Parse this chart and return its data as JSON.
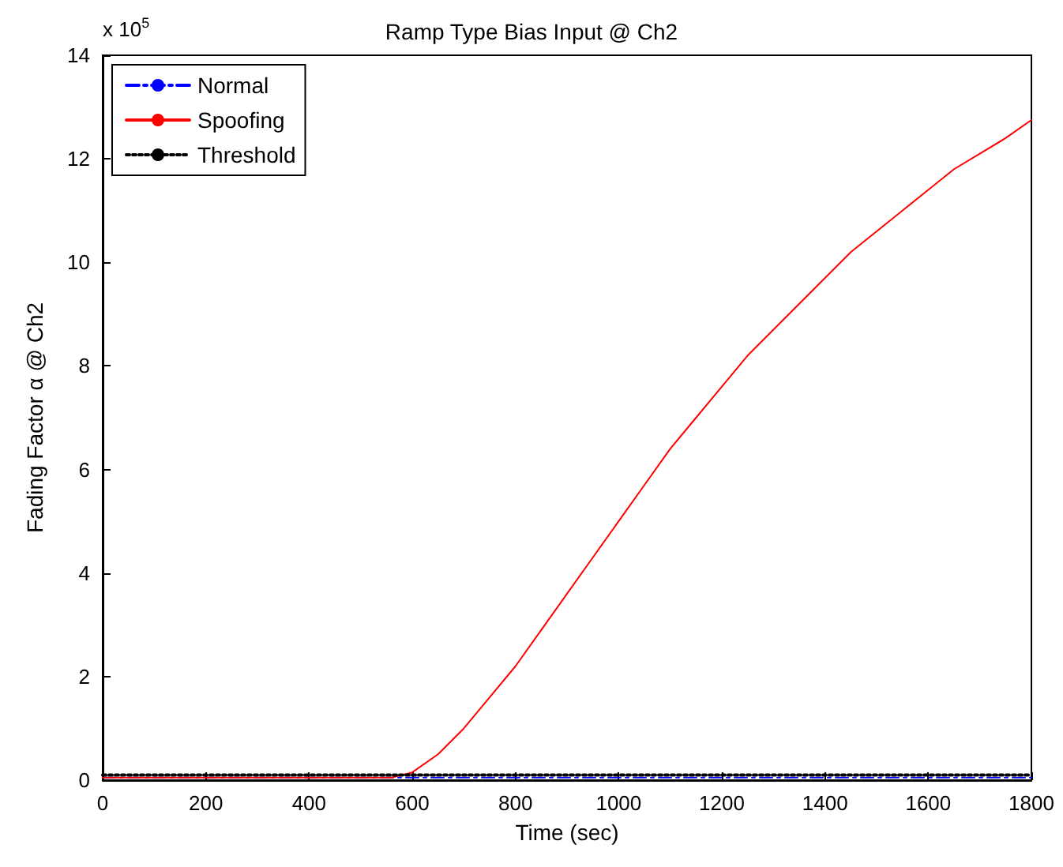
{
  "chart_data": {
    "type": "line",
    "title": "Ramp Type Bias Input @ Ch2",
    "xlabel": "Time (sec)",
    "ylabel": "Fading Factor α @ Ch2",
    "annotations": [
      "x 10$^{5}$"
    ],
    "xlim": [
      0,
      1800
    ],
    "xticks": [
      0,
      200,
      400,
      600,
      800,
      1000,
      1200,
      1400,
      1600,
      1800
    ],
    "ylim": [
      0,
      14
    ],
    "yticks": [
      0,
      2,
      4,
      6,
      8,
      10,
      12,
      14
    ],
    "grid": false,
    "legend": "top left",
    "marker": "none",
    "series": [
      {
        "name": "Normal",
        "color": "#0000ff",
        "line_style": "dashed",
        "x": [
          0,
          1800
        ],
        "values": [
          0.05,
          0.05
        ]
      },
      {
        "name": "Spoofing",
        "color": "#ff0000",
        "line_style": "solid",
        "x": [
          0,
          560,
          600,
          650,
          700,
          750,
          800,
          850,
          900,
          950,
          1000,
          1050,
          1100,
          1150,
          1200,
          1250,
          1300,
          1350,
          1400,
          1450,
          1500,
          1550,
          1600,
          1650,
          1700,
          1750,
          1800
        ],
        "values": [
          0.05,
          0.05,
          0.15,
          0.5,
          1.0,
          1.6,
          2.2,
          2.9,
          3.6,
          4.3,
          5.0,
          5.7,
          6.4,
          7.0,
          7.6,
          8.2,
          8.7,
          9.2,
          9.7,
          10.2,
          10.6,
          11.0,
          11.4,
          11.8,
          12.1,
          12.4,
          12.75
        ]
      },
      {
        "name": "Threshold",
        "color": "#000000",
        "line_style": "dotted",
        "x": [
          0,
          1800
        ],
        "values": [
          0.1,
          0.1
        ]
      }
    ]
  }
}
